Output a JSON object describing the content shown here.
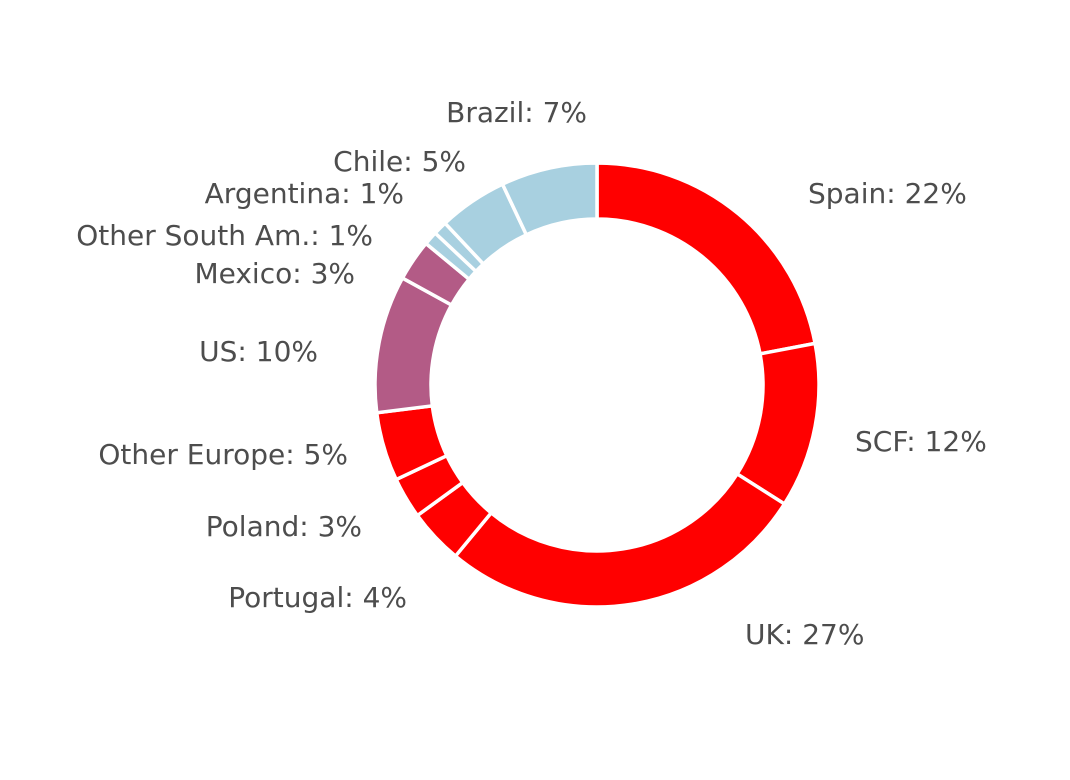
{
  "chart_data": {
    "type": "pie",
    "variant": "donut",
    "title": "",
    "start": "top",
    "direction": "clockwise",
    "colors": {
      "red": "#ff0000",
      "mauve": "#b35b86",
      "lightblue": "#a8d0e0",
      "label_text": "#4d4d4d",
      "separator": "#ffffff"
    },
    "slices": [
      {
        "name": "Spain",
        "value": 22,
        "color": "#ff0000",
        "label": "Spain: 22%"
      },
      {
        "name": "SCF",
        "value": 12,
        "color": "#ff0000",
        "label": "SCF: 12%"
      },
      {
        "name": "UK",
        "value": 27,
        "color": "#ff0000",
        "label": "UK: 27%"
      },
      {
        "name": "Portugal",
        "value": 4,
        "color": "#ff0000",
        "label": "Portugal: 4%"
      },
      {
        "name": "Poland",
        "value": 3,
        "color": "#ff0000",
        "label": "Poland: 3%"
      },
      {
        "name": "Other Europe",
        "value": 5,
        "color": "#ff0000",
        "label": "Other Europe: 5%"
      },
      {
        "name": "US",
        "value": 10,
        "color": "#b35b86",
        "label": "US: 10%"
      },
      {
        "name": "Mexico",
        "value": 3,
        "color": "#b35b86",
        "label": "Mexico: 3%"
      },
      {
        "name": "Other South Am.",
        "value": 1,
        "color": "#a8d0e0",
        "label": "Other South Am.: 1%"
      },
      {
        "name": "Argentina",
        "value": 1,
        "color": "#a8d0e0",
        "label": "Argentina: 1%"
      },
      {
        "name": "Chile",
        "value": 5,
        "color": "#a8d0e0",
        "label": "Chile: 5%"
      },
      {
        "name": "Brazil",
        "value": 7,
        "color": "#a8d0e0",
        "label": "Brazil: 7%"
      }
    ]
  }
}
